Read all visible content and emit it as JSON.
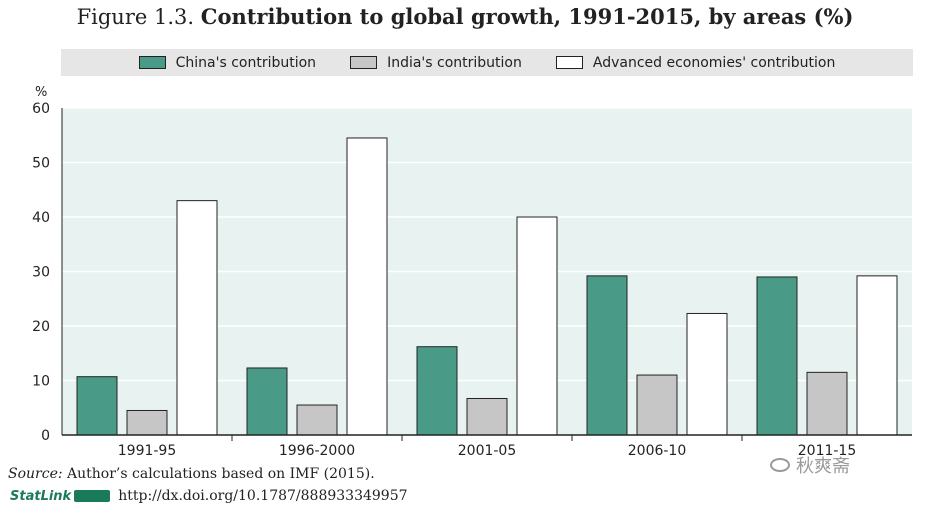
{
  "title_prefix": "Figure 1.3.",
  "title_main": "Contribution to global growth, 1991-2015, by areas (%)",
  "chart_data": {
    "type": "bar",
    "title": "Contribution to global growth, 1991-2015, by areas (%)",
    "ylabel": "%",
    "xlabel": "",
    "ylim": [
      0,
      60
    ],
    "yticks": [
      0,
      10,
      20,
      30,
      40,
      50,
      60
    ],
    "categories": [
      "1991-95",
      "1996-2000",
      "2001-05",
      "2006-10",
      "2011-15"
    ],
    "series": [
      {
        "name": "China's contribution",
        "color": "#4a9a88",
        "values": [
          10.7,
          12.3,
          16.2,
          29.2,
          29.0
        ]
      },
      {
        "name": "India's contribution",
        "color": "#c6c6c6",
        "values": [
          4.5,
          5.5,
          6.7,
          11.0,
          11.5
        ]
      },
      {
        "name": "Advanced economies' contribution",
        "color": "#ffffff",
        "values": [
          43.0,
          54.5,
          40.0,
          22.3,
          29.2
        ]
      }
    ],
    "plot_background": "#e8f3f1",
    "legend_position": "top"
  },
  "source_label": "Source:",
  "source_text": "Author’s calculations based on IMF (2015).",
  "statlink_label": "StatLink",
  "statlink_url": "http://dx.doi.org/10.1787/888933349957",
  "watermark_text": "秋爽斋"
}
